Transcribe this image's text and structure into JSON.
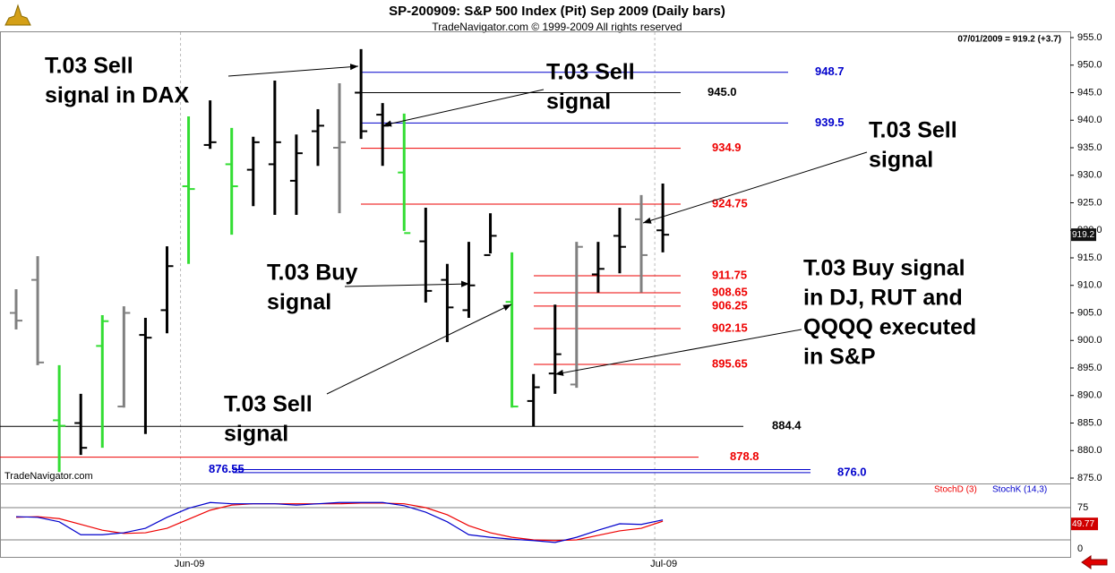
{
  "header": {
    "title": "SP-200909:  S&P 500 Index (Pit) Sep 2009  (Daily bars)",
    "subtitle": "TradeNavigator.com © 1999-2009 All rights reserved",
    "quote": "07/01/2009 = 919.2 (+3.7)",
    "watermark": "TradeNavigator.com"
  },
  "annotations": [
    [
      "T.03 Sell",
      "signal in DAX"
    ],
    [
      "T.03 Sell",
      "signal"
    ],
    [
      "T.03 Sell",
      "signal"
    ],
    [
      "T.03 Buy",
      "signal"
    ],
    [
      "T.03 Buy signal",
      "in DJ, RUT and",
      "QQQQ executed",
      "in S&P"
    ],
    [
      "T.03 Sell",
      "signal"
    ]
  ],
  "chart_data": [
    {
      "type": "ohlc",
      "categories": [
        null,
        null,
        null,
        null,
        null,
        null,
        null,
        null,
        "Jun-09",
        null,
        null,
        null,
        null,
        null,
        null,
        null,
        null,
        null,
        null,
        null,
        null,
        null,
        null,
        null,
        null,
        null,
        null,
        null,
        null,
        null,
        "Jul-09"
      ],
      "open": [
        905,
        911,
        885.5,
        885,
        899,
        888,
        901,
        905.5,
        928,
        935.5,
        932,
        931,
        932,
        929,
        938,
        935,
        945,
        941,
        930.5,
        918,
        911,
        905.5,
        915.5,
        907,
        889,
        894,
        892,
        912,
        919,
        922,
        920
      ],
      "high": [
        909.3,
        915.3,
        895.5,
        890.3,
        904.6,
        906.2,
        904.1,
        917.1,
        940.7,
        943.6,
        938.6,
        937,
        947.2,
        937.4,
        942,
        946.7,
        952.9,
        943.1,
        941.2,
        924.1,
        913.9,
        917.9,
        923.1,
        916,
        893.9,
        906.5,
        917.9,
        917.9,
        924.1,
        926.4,
        928.5
      ],
      "low": [
        902,
        895.5,
        876.1,
        879.2,
        880.5,
        887.8,
        883,
        901.3,
        913.9,
        934.8,
        919.2,
        924.4,
        922.8,
        922.8,
        931.7,
        923.1,
        936.6,
        931.7,
        919.9,
        906.9,
        899.7,
        904.1,
        915.8,
        887.8,
        884.4,
        890.3,
        891.4,
        908.7,
        912.2,
        908.7,
        916
      ],
      "close": [
        903.6,
        896,
        884.5,
        880.5,
        903.5,
        905,
        900.5,
        913.5,
        927.5,
        936,
        928,
        936,
        936,
        934,
        939,
        936,
        938,
        939,
        919.5,
        909,
        906,
        910,
        919,
        888,
        891.5,
        897.5,
        917,
        913,
        917,
        915.5,
        919.2
      ],
      "colors": [
        "#808080",
        "#808080",
        "#33dd33",
        "#000000",
        "#33dd33",
        "#808080",
        "#000000",
        "#000000",
        "#33dd33",
        "#000000",
        "#33dd33",
        "#000000",
        "#000000",
        "#000000",
        "#000000",
        "#808080",
        "#000000",
        "#000000",
        "#33dd33",
        "#000000",
        "#000000",
        "#000000",
        "#000000",
        "#33dd33",
        "#000000",
        "#000000",
        "#808080",
        "#000000",
        "#000000",
        "#808080",
        "#000000"
      ],
      "ylim": [
        875,
        955
      ],
      "yticks": [
        {
          "value": 875,
          "label": "875.0"
        },
        {
          "value": 880,
          "label": "880.0"
        },
        {
          "value": 885,
          "label": "885.0"
        },
        {
          "value": 890,
          "label": "890.0"
        },
        {
          "value": 895,
          "label": "895.0"
        },
        {
          "value": 900,
          "label": "900.0"
        },
        {
          "value": 905,
          "label": "905.0"
        },
        {
          "value": 910,
          "label": "910.0"
        },
        {
          "value": 915,
          "label": "915.0"
        },
        {
          "value": 920,
          "label": "920.0"
        },
        {
          "value": 925,
          "label": "925.0"
        },
        {
          "value": 930,
          "label": "930.0"
        },
        {
          "value": 935,
          "label": "935.0"
        },
        {
          "value": 940,
          "label": "940.0"
        },
        {
          "value": 945,
          "label": "945.0"
        },
        {
          "value": 950,
          "label": "950.0"
        },
        {
          "value": 955,
          "label": "955.0"
        }
      ],
      "last_price": 919.2,
      "levels": [
        {
          "value": 948.7,
          "color": "#0000cc"
        },
        {
          "value": {
            "value": 945,
            "label": "945.0"
          },
          "color": "#000000"
        },
        {
          "value": 939.5,
          "color": "#0000cc"
        },
        {
          "value": 934.9,
          "color": "#ee0000"
        },
        {
          "value": 924.75,
          "color": "#ee0000"
        },
        {
          "value": 911.75,
          "color": "#ee0000"
        },
        {
          "value": 908.65,
          "color": "#ee0000"
        },
        {
          "value": 906.25,
          "color": "#ee0000"
        },
        {
          "value": 902.15,
          "color": "#ee0000"
        },
        {
          "value": 895.65,
          "color": "#ee0000"
        },
        {
          "value": 884.4,
          "color": "#000000"
        },
        {
          "value": 878.8,
          "color": "#ee0000"
        },
        {
          "value": 876.55,
          "color": "#0000cc"
        },
        {
          "value": {
            "value": 876,
            "label": "876.0"
          },
          "color": "#0000cc"
        }
      ]
    },
    {
      "type": "line",
      "series": [
        {
          "name": "StochD (3)",
          "color": "#ee0000",
          "values": [
            60,
            61,
            58,
            49,
            40,
            35,
            36,
            43,
            57,
            71,
            79,
            81,
            81,
            81,
            81,
            81,
            82,
            82,
            81,
            75,
            64,
            47,
            36,
            29,
            25,
            24,
            25,
            32,
            39,
            43,
            54
          ]
        },
        {
          "name": "StochK (14,3)",
          "color": "#0000cc",
          "values": [
            61,
            60,
            53,
            33,
            33,
            36,
            43,
            60,
            74,
            83,
            81,
            81,
            81,
            79,
            81,
            83,
            83,
            83,
            78,
            68,
            53,
            33,
            29,
            26,
            24,
            21,
            29,
            40,
            50,
            49,
            56
          ]
        }
      ],
      "ylim": [
        0,
        100
      ],
      "yticks": [
        0,
        {
          "value": 25,
          "label": null
        },
        75
      ],
      "last_value": 49.77
    }
  ]
}
